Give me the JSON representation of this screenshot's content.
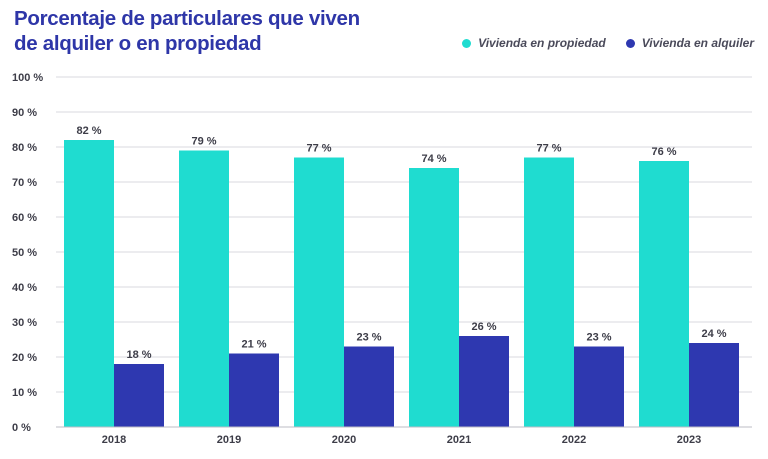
{
  "title": "Porcentaje de particulares que viven de alquiler o en propiedad",
  "colors": {
    "title": "#2e36a8",
    "grid": "#d9d9df",
    "text": "#3d3d48"
  },
  "chart_data": {
    "type": "bar",
    "title": "Porcentaje de particulares que viven de alquiler o en propiedad",
    "xlabel": "",
    "ylabel": "",
    "ylim": [
      0,
      100
    ],
    "grid": true,
    "legend_position": "top-right",
    "categories": [
      "2018",
      "2019",
      "2020",
      "2021",
      "2022",
      "2023"
    ],
    "yticks": [
      0,
      10,
      20,
      30,
      40,
      50,
      60,
      70,
      80,
      90,
      100
    ],
    "ytick_labels": [
      "0 %",
      "10 %",
      "20 %",
      "30 %",
      "40 %",
      "50 %",
      "60 %",
      "70 %",
      "80 %",
      "90 %",
      "100 %"
    ],
    "series": [
      {
        "name": "Vivienda en propiedad",
        "color": "#1fdcd0",
        "values": [
          82,
          79,
          77,
          74,
          77,
          76
        ],
        "labels": [
          "82 %",
          "79 %",
          "77 %",
          "74 %",
          "77 %",
          "76 %"
        ]
      },
      {
        "name": "Vivienda en alquiler",
        "color": "#2e38b0",
        "values": [
          18,
          21,
          23,
          26,
          23,
          24
        ],
        "labels": [
          "18 %",
          "21 %",
          "23 %",
          "26 %",
          "23 %",
          "24 %"
        ]
      }
    ]
  }
}
